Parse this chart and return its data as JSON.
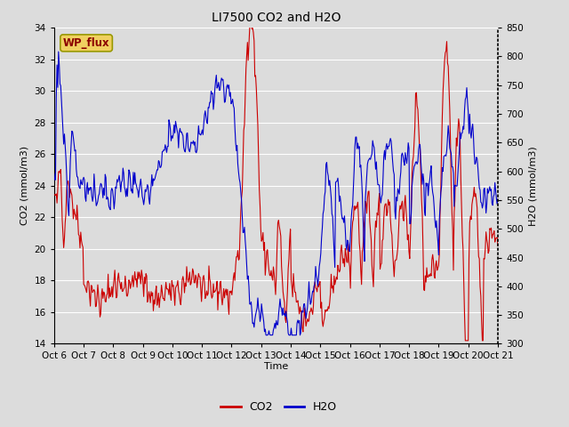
{
  "title": "LI7500 CO2 and H2O",
  "xlabel": "Time",
  "ylabel_left": "CO2 (mmol/m3)",
  "ylabel_right": "H2O (mmol/m3)",
  "co2_ylim": [
    14,
    34
  ],
  "h2o_ylim": [
    300,
    850
  ],
  "co2_yticks": [
    14,
    16,
    18,
    20,
    22,
    24,
    26,
    28,
    30,
    32,
    34
  ],
  "h2o_yticks": [
    300,
    350,
    400,
    450,
    500,
    550,
    600,
    650,
    700,
    750,
    800,
    850
  ],
  "xtick_labels": [
    "Oct 6",
    "Oct 7",
    "Oct 8",
    "Oct 9",
    "Oct 10",
    "Oct 11",
    "Oct 12",
    "Oct 13",
    "Oct 14",
    "Oct 15",
    "Oct 16",
    "Oct 17",
    "Oct 18",
    "Oct 19",
    "Oct 20",
    "Oct 21"
  ],
  "co2_color": "#cc0000",
  "h2o_color": "#0000cc",
  "fig_bg_color": "#dcdcdc",
  "plot_bg_color": "#dcdcdc",
  "annotation_text": "WP_flux",
  "annotation_bg": "#f0d060",
  "annotation_border": "#999900",
  "title_fontsize": 10,
  "axis_fontsize": 8,
  "tick_fontsize": 7.5,
  "legend_fontsize": 9
}
